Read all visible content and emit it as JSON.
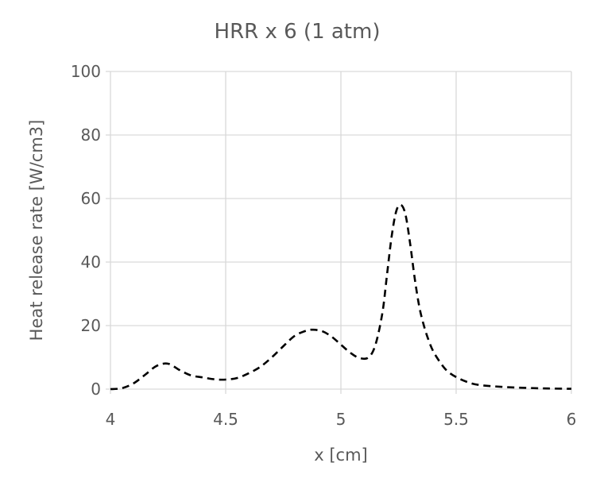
{
  "chart_data": {
    "type": "line",
    "title": "HRR x 6 (1 atm)",
    "xlabel": "x [cm]",
    "ylabel": "Heat release rate [W/cm3]",
    "xlim": [
      4,
      6
    ],
    "ylim": [
      0,
      100
    ],
    "xticks": [
      4,
      4.5,
      5,
      5.5,
      6
    ],
    "xtick_labels": [
      "4",
      "4.5",
      "5",
      "5.5",
      "6"
    ],
    "yticks": [
      0,
      20,
      40,
      60,
      80,
      100
    ],
    "ytick_labels": [
      "0",
      "20",
      "40",
      "60",
      "80",
      "100"
    ],
    "grid": true,
    "legend": "none",
    "series": [
      {
        "line_style": "dashed",
        "color": "#000000",
        "x": [
          4.0,
          4.05,
          4.1,
          4.15,
          4.2,
          4.25,
          4.3,
          4.35,
          4.4,
          4.45,
          4.5,
          4.55,
          4.6,
          4.65,
          4.7,
          4.75,
          4.8,
          4.85,
          4.88,
          4.92,
          4.96,
          5.0,
          5.04,
          5.08,
          5.12,
          5.15,
          5.18,
          5.2,
          5.22,
          5.24,
          5.26,
          5.28,
          5.3,
          5.32,
          5.34,
          5.36,
          5.38,
          5.4,
          5.43,
          5.46,
          5.5,
          5.55,
          5.6,
          5.7,
          5.8,
          5.9,
          6.0
        ],
        "y": [
          0,
          0.3,
          1.8,
          4.5,
          7.3,
          8,
          6,
          4.3,
          3.7,
          3.1,
          3,
          3.5,
          5,
          7,
          10,
          13.5,
          16.8,
          18.4,
          18.7,
          18.2,
          16.5,
          14,
          11.5,
          9.8,
          10,
          14,
          24,
          36,
          48,
          56,
          58,
          55,
          46,
          35,
          26,
          20,
          15.5,
          12,
          8.5,
          5.8,
          3.8,
          2.2,
          1.3,
          0.7,
          0.4,
          0.2,
          0.1
        ]
      }
    ]
  }
}
